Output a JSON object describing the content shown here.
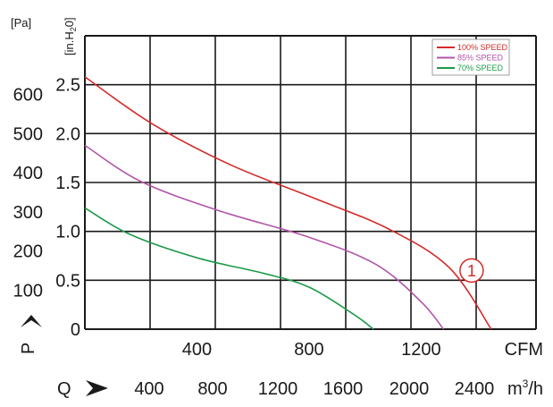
{
  "chart_data": {
    "type": "line",
    "title": "",
    "left_axis": {
      "label": "P",
      "unit_pa": "[Pa]",
      "unit_inh2o_prefix": "[in.H",
      "unit_inh2o_sub": "2",
      "unit_inh2o_suffix": "0]",
      "pa_ticks": [
        "600",
        "500",
        "400",
        "300",
        "200",
        "100"
      ],
      "pa_tick_values": [
        600,
        500,
        400,
        300,
        200,
        100
      ],
      "inh2o_ticks": [
        "2.5",
        "2.0",
        "1.5",
        "1.0",
        "0.5",
        "0"
      ],
      "inh2o_tick_values": [
        2.5,
        2.0,
        1.5,
        1.0,
        0.5,
        0.0
      ]
    },
    "bottom_axis": {
      "label": "Q",
      "cfm_unit": "CFM",
      "cfm_ticks": [
        "400",
        "800",
        "1200"
      ],
      "cfm_tick_values": [
        400,
        800,
        1200
      ],
      "m3h_unit_base": "m",
      "m3h_unit_sup": "3",
      "m3h_unit_tail": "/h",
      "m3h_ticks": [
        "400",
        "800",
        "1200",
        "1600",
        "2000",
        "2400"
      ],
      "m3h_tick_values": [
        400,
        800,
        1200,
        1600,
        2000,
        2400
      ]
    },
    "xlim_cfm": [
      0,
      1610
    ],
    "ylim_inh2o": [
      0,
      3.0
    ],
    "grid": true,
    "legend_position": "top-right",
    "series": [
      {
        "name": "100% SPEED",
        "color": "#d42a2a",
        "x": [
          0,
          240,
          520,
          800,
          1080,
          1300,
          1450
        ],
        "y": [
          2.58,
          2.1,
          1.68,
          1.36,
          1.03,
          0.63,
          0.0
        ]
      },
      {
        "name": "85% SPEED",
        "color": "#b155a8",
        "x": [
          0,
          200,
          480,
          800,
          1040,
          1200,
          1280
        ],
        "y": [
          1.88,
          1.51,
          1.21,
          0.94,
          0.66,
          0.28,
          0.0
        ]
      },
      {
        "name": "70% SPEED",
        "color": "#1e9a4a",
        "x": [
          0,
          160,
          400,
          640,
          800,
          960,
          1030
        ],
        "y": [
          1.24,
          0.97,
          0.73,
          0.57,
          0.43,
          0.15,
          0.0
        ]
      }
    ],
    "annotations": [
      {
        "text": "1",
        "style": "circled",
        "x": 1380,
        "y": 0.6,
        "color": "#d42a2a"
      }
    ]
  }
}
